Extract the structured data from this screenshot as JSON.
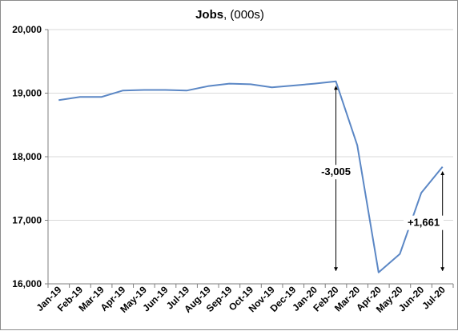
{
  "chart_data": {
    "type": "line",
    "title": "Jobs",
    "title_suffix": ", (000s)",
    "xlabel": "",
    "ylabel": "",
    "categories": [
      "Jan-19",
      "Feb-19",
      "Mar-19",
      "Apr-19",
      "May-19",
      "Jun-19",
      "Jul-19",
      "Aug-19",
      "Sep-19",
      "Oct-19",
      "Nov-19",
      "Dec-19",
      "Jan-20",
      "Feb-20",
      "Mar-20",
      "Apr-20",
      "May-20",
      "Jun-20",
      "Jul-20"
    ],
    "series": [
      {
        "values": [
          18890,
          18940,
          18940,
          19040,
          19050,
          19050,
          19040,
          19110,
          19150,
          19140,
          19090,
          19120,
          19150,
          19185,
          18180,
          16180,
          16470,
          17430,
          17841
        ],
        "color": "#5b87c5"
      }
    ],
    "ylim": [
      16000,
      20000
    ],
    "yticks": [
      16000,
      17000,
      18000,
      19000,
      20000
    ],
    "ytick_labels": [
      "16,000",
      "17,000",
      "18,000",
      "19,000",
      "20,000"
    ],
    "grid": true,
    "grid_axis": "y",
    "grid_color": "#d9d9d9",
    "legend": "none",
    "annotations": [
      {
        "label": "-3,005",
        "from_category": "Feb-20",
        "from_value": 19185,
        "to_value": 16180,
        "color": "#000000"
      },
      {
        "label": "+1,661",
        "from_category": "Jul-20",
        "from_value": 17841,
        "to_value": 16180,
        "color": "#000000"
      }
    ]
  }
}
